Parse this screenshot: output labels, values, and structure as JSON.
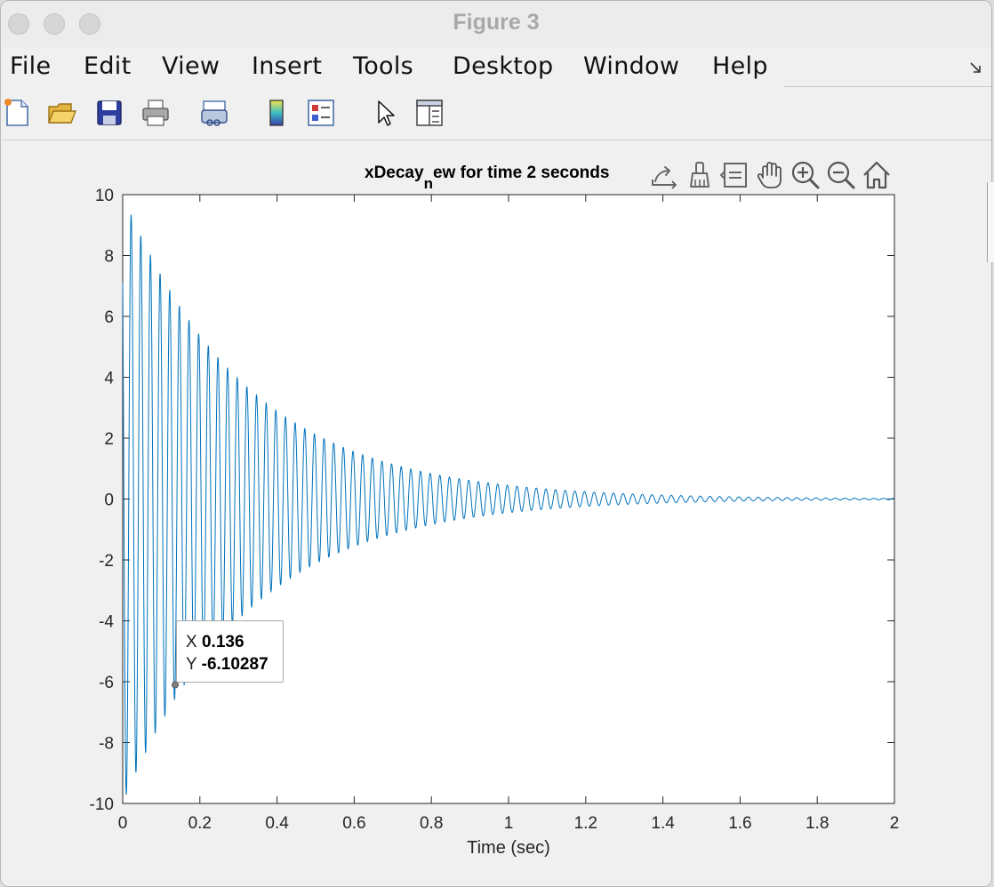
{
  "window": {
    "title": "Figure 3"
  },
  "menubar": {
    "items": [
      "File",
      "Edit",
      "View",
      "Insert",
      "Tools",
      "Desktop",
      "Window",
      "Help"
    ]
  },
  "toolbar": {
    "icons": [
      "new-figure-icon",
      "open-file-icon",
      "save-icon",
      "print-icon",
      "link-plot-icon",
      "colorbar-icon",
      "legend-icon",
      "edit-plot-arrow-icon",
      "property-inspector-icon"
    ]
  },
  "axes_toolbar": {
    "icons": [
      "export-icon",
      "brush-icon",
      "data-tips-icon",
      "pan-hand-icon",
      "zoom-in-icon",
      "zoom-out-icon",
      "home-icon"
    ]
  },
  "chart_data": {
    "type": "line",
    "title": "xDecay_new for time 2 seconds",
    "title_parts": {
      "pre": "xDecay",
      "sub": "n",
      "post": "ew for time 2 seconds"
    },
    "xlabel": "Time (sec)",
    "ylabel": "",
    "xlim": [
      0,
      2
    ],
    "ylim": [
      -10,
      10
    ],
    "xticks": [
      0,
      0.2,
      0.4,
      0.6,
      0.8,
      1,
      1.2,
      1.4,
      1.6,
      1.8,
      2
    ],
    "xtick_labels": [
      "0",
      "0.2",
      "0.4",
      "0.6",
      "0.8",
      "1",
      "1.2",
      "1.4",
      "1.6",
      "1.8",
      "2"
    ],
    "yticks": [
      -10,
      -8,
      -6,
      -4,
      -2,
      0,
      2,
      4,
      6,
      8,
      10
    ],
    "ytick_labels": [
      "-10",
      "-8",
      "-6",
      "-4",
      "-2",
      "0",
      "2",
      "4",
      "6",
      "8",
      "10"
    ],
    "grid": false,
    "line_color": "#0072bd",
    "series": [
      {
        "function": "damped sinusoid",
        "start": 0,
        "end": 2,
        "amplitude": 10,
        "decay_rate": 3.1,
        "frequency": 40,
        "phase": 0.78
      }
    ],
    "datatip": {
      "x_label": "X",
      "x_value": "0.136",
      "y_label": "Y",
      "y_value": "-6.10287",
      "x": 0.136,
      "y": -6.10287
    }
  }
}
